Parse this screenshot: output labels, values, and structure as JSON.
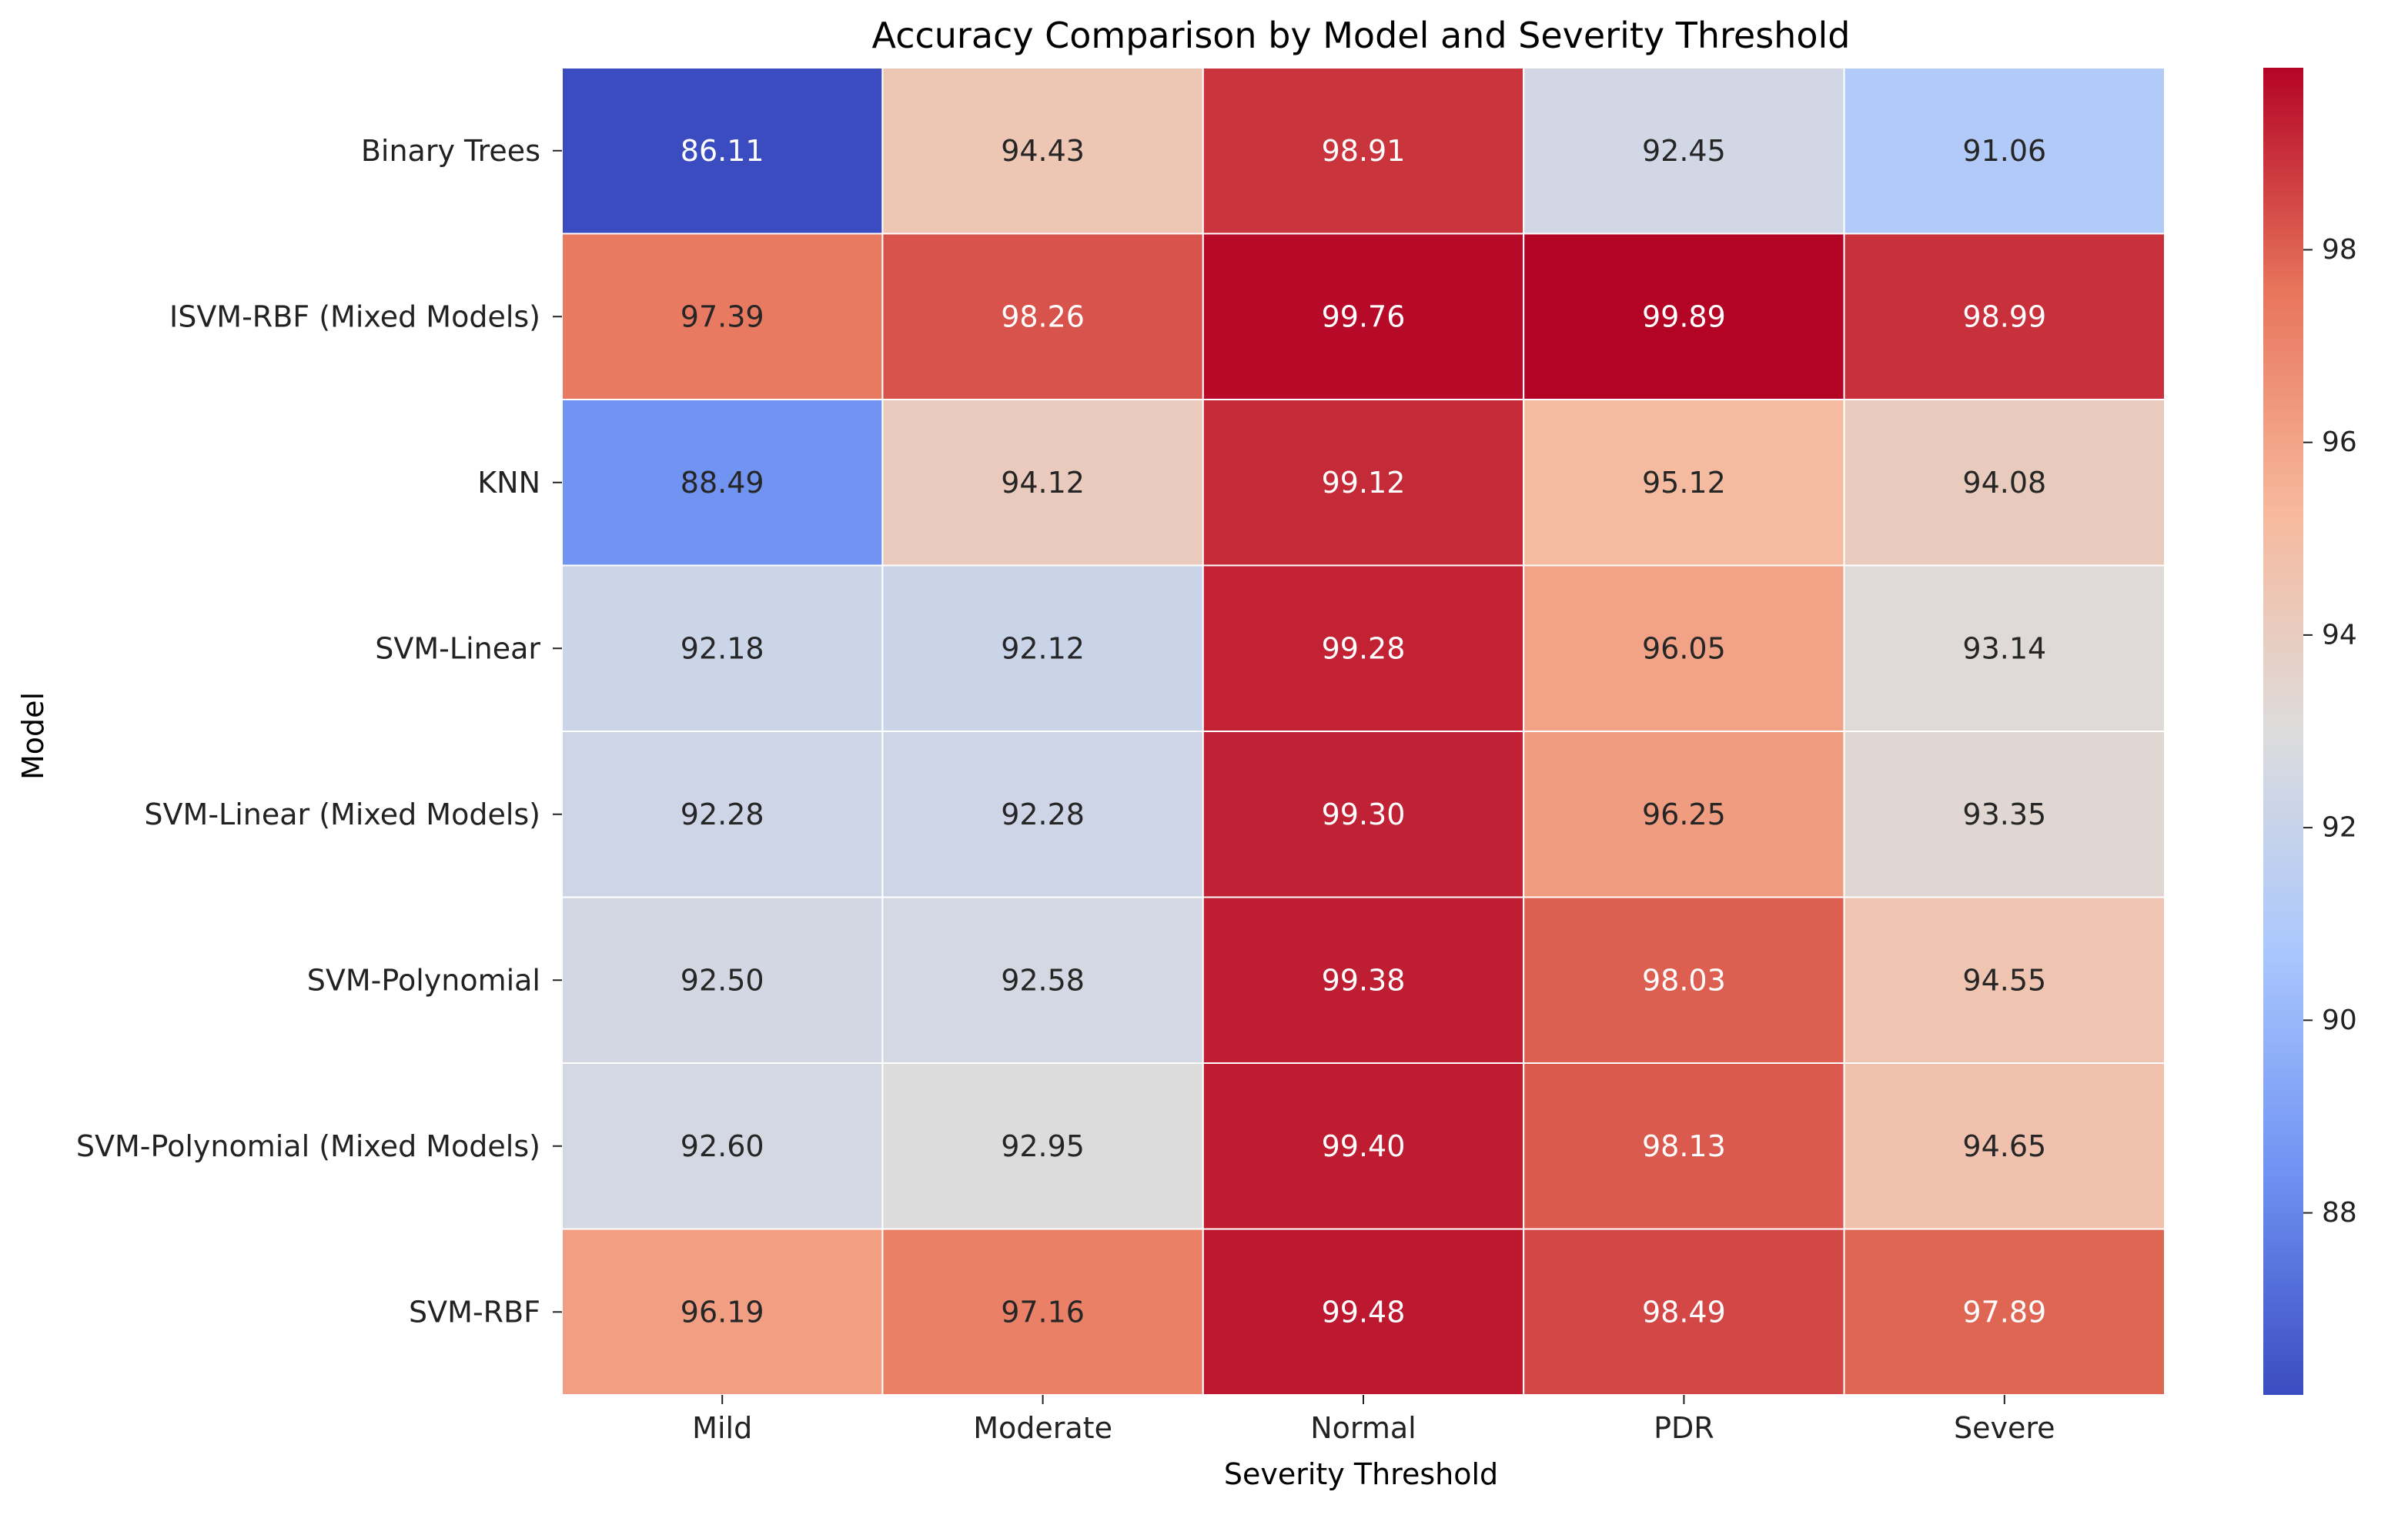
{
  "chart_data": {
    "type": "heatmap",
    "title": "Accuracy Comparison by Model and Severity Threshold",
    "xlabel": "Severity Threshold",
    "ylabel": "Model",
    "x_categories": [
      "Mild",
      "Moderate",
      "Normal",
      "PDR",
      "Severe"
    ],
    "y_categories": [
      "Binary Trees",
      "ISVM-RBF (Mixed Models)",
      "KNN",
      "SVM-Linear",
      "SVM-Linear (Mixed Models)",
      "SVM-Polynomial",
      "SVM-Polynomial (Mixed Models)",
      "SVM-RBF"
    ],
    "values": [
      [
        86.11,
        94.43,
        98.91,
        92.45,
        91.06
      ],
      [
        97.39,
        98.26,
        99.76,
        99.89,
        98.99
      ],
      [
        88.49,
        94.12,
        99.12,
        95.12,
        94.08
      ],
      [
        92.18,
        92.12,
        99.28,
        96.05,
        93.14
      ],
      [
        92.28,
        92.28,
        99.3,
        96.25,
        93.35
      ],
      [
        92.5,
        92.58,
        99.38,
        98.03,
        94.55
      ],
      [
        92.6,
        92.95,
        99.4,
        98.13,
        94.65
      ],
      [
        96.19,
        97.16,
        99.48,
        98.49,
        97.89
      ]
    ],
    "value_labels": [
      [
        "86.11",
        "94.43",
        "98.91",
        "92.45",
        "91.06"
      ],
      [
        "97.39",
        "98.26",
        "99.76",
        "99.89",
        "98.99"
      ],
      [
        "88.49",
        "94.12",
        "99.12",
        "95.12",
        "94.08"
      ],
      [
        "92.18",
        "92.12",
        "99.28",
        "96.05",
        "93.14"
      ],
      [
        "92.28",
        "92.28",
        "99.30",
        "96.25",
        "93.35"
      ],
      [
        "92.50",
        "92.58",
        "99.38",
        "98.03",
        "94.55"
      ],
      [
        "92.60",
        "92.95",
        "99.40",
        "98.13",
        "94.65"
      ],
      [
        "96.19",
        "97.16",
        "99.48",
        "98.49",
        "97.89"
      ]
    ],
    "colormap": "coolwarm",
    "colormap_stops": [
      "#3b4cc0",
      "#6f92f3",
      "#aac7fd",
      "#dddcdc",
      "#f7b89c",
      "#e7745b",
      "#b40426"
    ],
    "vmin": 86.11,
    "vmax": 99.89,
    "colorbar_ticks": [
      88,
      90,
      92,
      94,
      96,
      98
    ],
    "colorbar_tick_labels": [
      "88",
      "90",
      "92",
      "94",
      "96",
      "98"
    ],
    "light_text_color": "#ffffff",
    "dark_text_color": "#262626",
    "grid": false,
    "legend": "colorbar-right"
  }
}
